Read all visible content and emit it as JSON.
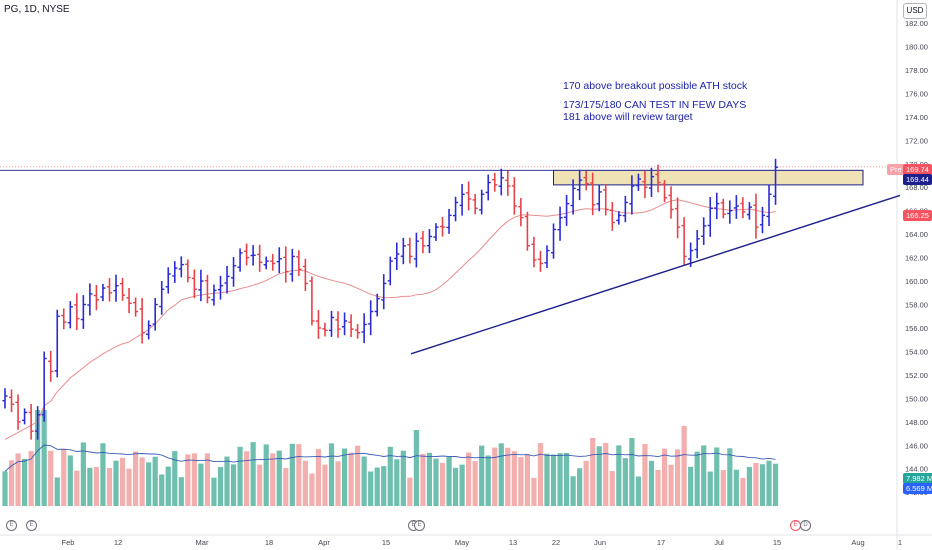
{
  "symbol": "PG, 1D, NYSE",
  "currency": "USD",
  "annotations": [
    "170 above breakout possible ATH stock",
    "173/175/180 CAN TEST IN FEW DAYS",
    "181 above will review target"
  ],
  "colors": {
    "up": "#2a2bd6",
    "down": "#e8414a",
    "ma": "#e88d92",
    "trendline": "#1c1f8c",
    "zone_fill": "#efe3b6",
    "volume_up": "#5fb8a6",
    "volume_down": "#f2a5a5",
    "volume_ma": "#3b5bb8",
    "price_tag": "#f7525f",
    "ma_tag": "#f7525f",
    "vol_tag1": "#26a69a",
    "vol_tag2": "#2962ff"
  },
  "price_tags": {
    "pre": "Pre",
    "last": "169.74",
    "resistance": "169.44",
    "ma": "166.25"
  },
  "volume_tags": [
    "7.982 M",
    "6.569 M"
  ],
  "event_markers": [
    "E",
    "E",
    "E",
    "E",
    "E",
    "D"
  ],
  "chart_data": {
    "type": "ohlc",
    "x_ticks": [
      "Feb",
      "12",
      "Mar",
      "18",
      "Apr",
      "15",
      "May",
      "13",
      "22",
      "Jun",
      "17",
      "Jul",
      "15",
      "Aug",
      "1"
    ],
    "y_ticks": [
      142,
      144,
      146,
      148,
      150,
      152,
      154,
      156,
      158,
      160,
      162,
      164,
      166,
      168,
      170,
      172,
      174,
      176,
      178,
      180,
      182
    ],
    "ylim": [
      141,
      183.5
    ],
    "closes": [
      150.2,
      149.5,
      148.0,
      148.8,
      147.2,
      148.6,
      153.4,
      152.3,
      157.0,
      156.5,
      157.8,
      156.8,
      158.0,
      158.9,
      158.4,
      159.4,
      159.0,
      159.6,
      158.8,
      158.1,
      157.4,
      155.6,
      156.2,
      158.0,
      159.3,
      160.6,
      161.1,
      161.4,
      160.3,
      159.3,
      160.0,
      158.6,
      159.2,
      159.6,
      160.4,
      161.3,
      162.4,
      162.0,
      162.2,
      161.6,
      161.7,
      161.5,
      161.9,
      160.8,
      162.1,
      161.0,
      159.8,
      156.6,
      156.0,
      155.8,
      156.9,
      155.9,
      156.6,
      155.9,
      155.6,
      156.3,
      157.4,
      158.5,
      159.8,
      161.7,
      162.3,
      163.0,
      162.1,
      163.4,
      163.0,
      163.8,
      164.6,
      164.6,
      165.6,
      166.7,
      167.4,
      167.0,
      166.2,
      167.4,
      168.4,
      168.2,
      168.8,
      168.1,
      166.4,
      165.4,
      163.0,
      161.8,
      161.5,
      162.6,
      164.4,
      165.4,
      166.6,
      167.9,
      168.6,
      168.3,
      166.5,
      167.6,
      166.1,
      165.0,
      165.6,
      166.7,
      168.1,
      168.7,
      168.0,
      168.9,
      168.4,
      167.1,
      166.1,
      164.6,
      162.1,
      162.6,
      163.6,
      164.7,
      166.2,
      166.6,
      165.7,
      166.0,
      166.4,
      165.9,
      166.3,
      164.6,
      165.6,
      167.4,
      169.7
    ],
    "resistance_zone": [
      168.2,
      169.44
    ],
    "trendline": {
      "from": [
        "15",
        153.8
      ],
      "to": [
        "Aug",
        166.8
      ]
    }
  }
}
